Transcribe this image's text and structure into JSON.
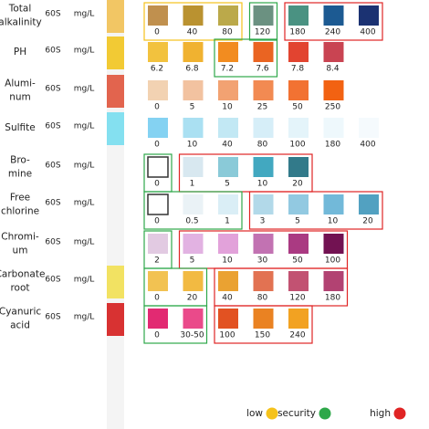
{
  "rows": [
    {
      "name": [
        "Total",
        "alkalinity"
      ],
      "time": "60S",
      "unit": "mg/L",
      "pad_color": "#f2c664",
      "swatches": [
        {
          "label": "0",
          "color": "#c0904e",
          "level": "low"
        },
        {
          "label": "40",
          "color": "#ba9230",
          "level": "low"
        },
        {
          "label": "80",
          "color": "#bba94a",
          "level": "low"
        },
        {
          "label": "120",
          "color": "#6b9181",
          "level": "security"
        },
        {
          "label": "180",
          "color": "#4a9282",
          "level": "high"
        },
        {
          "label": "240",
          "color": "#1c5a92",
          "level": "high"
        },
        {
          "label": "400",
          "color": "#1b3272",
          "level": "high"
        }
      ]
    },
    {
      "name": [
        "PH"
      ],
      "time": "60S",
      "unit": "mg/L",
      "pad_color": "#f2ca34",
      "swatches": [
        {
          "label": "6.2",
          "color": "#f2c23e",
          "level": null
        },
        {
          "label": "6.8",
          "color": "#f0b230",
          "level": null
        },
        {
          "label": "7.2",
          "color": "#f28c20",
          "level": "security"
        },
        {
          "label": "7.6",
          "color": "#ea6422",
          "level": "security"
        },
        {
          "label": "7.8",
          "color": "#e24430",
          "level": null
        },
        {
          "label": "8.4",
          "color": "#c94452",
          "level": null
        }
      ]
    },
    {
      "name": [
        "Alumi-",
        "num"
      ],
      "time": "60S",
      "unit": "mg/L",
      "pad_color": "#e2644e",
      "swatches": [
        {
          "label": "0",
          "color": "#f2d2b2",
          "level": null
        },
        {
          "label": "5",
          "color": "#f2c2a0",
          "level": null
        },
        {
          "label": "10",
          "color": "#f2a272",
          "level": null
        },
        {
          "label": "25",
          "color": "#f28a52",
          "level": null
        },
        {
          "label": "50",
          "color": "#f27232",
          "level": null
        },
        {
          "label": "250",
          "color": "#f26212",
          "level": null
        }
      ]
    },
    {
      "name": [
        "Sulfite"
      ],
      "time": "60S",
      "unit": "mg/L",
      "pad_color": "#84e0f0",
      "swatches": [
        {
          "label": "0",
          "color": "#84d2f2",
          "level": null
        },
        {
          "label": "10",
          "color": "#aae0f2",
          "level": null
        },
        {
          "label": "40",
          "color": "#c2e8f4",
          "level": null
        },
        {
          "label": "80",
          "color": "#d6eef8",
          "level": null
        },
        {
          "label": "100",
          "color": "#e4f4fa",
          "level": null
        },
        {
          "label": "180",
          "color": "#eef8fc",
          "level": null
        },
        {
          "label": "400",
          "color": "#f5fafd",
          "level": null
        }
      ]
    },
    {
      "name": [
        "Bro-",
        "mine"
      ],
      "time": "60S",
      "unit": "mg/L",
      "pad_color": "#f4f4f4",
      "swatches": [
        {
          "label": "0",
          "color": "#ffffff",
          "level": "security"
        },
        {
          "label": "1",
          "color": "#d8e8f0",
          "level": "high"
        },
        {
          "label": "5",
          "color": "#8acad8",
          "level": "high"
        },
        {
          "label": "10",
          "color": "#42a8c0",
          "level": "high"
        },
        {
          "label": "20",
          "color": "#327a8a",
          "level": "high"
        }
      ]
    },
    {
      "name": [
        "Free",
        "chlorine"
      ],
      "time": "60S",
      "unit": "mg/L",
      "pad_color": "#f4f4f4",
      "swatches": [
        {
          "label": "0",
          "color": "#ffffff",
          "level": "security"
        },
        {
          "label": "0.5",
          "color": "#eaf2f6",
          "level": "security"
        },
        {
          "label": "1",
          "color": "#daeef6",
          "level": "security"
        },
        {
          "label": "3",
          "color": "#b2d9e9",
          "level": "high"
        },
        {
          "label": "5",
          "color": "#92c9e1",
          "level": "high"
        },
        {
          "label": "10",
          "color": "#72b9d9",
          "level": "high"
        },
        {
          "label": "20",
          "color": "#52a1c1",
          "level": "high"
        }
      ]
    },
    {
      "name": [
        "Chromi-",
        "um"
      ],
      "time": "60S",
      "unit": "mg/L",
      "pad_color": "#f4f4f4",
      "swatches": [
        {
          "label": "2",
          "color": "#e2cae2",
          "level": "security"
        },
        {
          "label": "5",
          "color": "#e2b2e2",
          "level": "high"
        },
        {
          "label": "10",
          "color": "#e2a2da",
          "level": "high"
        },
        {
          "label": "30",
          "color": "#c272b2",
          "level": "high"
        },
        {
          "label": "50",
          "color": "#aa3a82",
          "level": "high"
        },
        {
          "label": "100",
          "color": "#721252",
          "level": "high"
        }
      ]
    },
    {
      "name": [
        "Carbonate",
        "root"
      ],
      "time": "60S",
      "unit": "mg/L",
      "pad_color": "#f2e262",
      "swatches": [
        {
          "label": "0",
          "color": "#f2c252",
          "level": "security"
        },
        {
          "label": "20",
          "color": "#f2ba42",
          "level": "security"
        },
        {
          "label": "40",
          "color": "#eaa232",
          "level": "high"
        },
        {
          "label": "80",
          "color": "#e27252",
          "level": "high"
        },
        {
          "label": "120",
          "color": "#c25272",
          "level": "high"
        },
        {
          "label": "180",
          "color": "#b24272",
          "level": "high"
        }
      ]
    },
    {
      "name": [
        "Cyanuric",
        "acid"
      ],
      "time": "60S",
      "unit": "mg/L",
      "pad_color": "#d83232",
      "swatches": [
        {
          "label": "0",
          "color": "#e22a72",
          "level": "security"
        },
        {
          "label": "30-50",
          "color": "#ea4a8a",
          "level": "security"
        },
        {
          "label": "100",
          "color": "#e25222",
          "level": "high"
        },
        {
          "label": "150",
          "color": "#ea8222",
          "level": "high"
        },
        {
          "label": "240",
          "color": "#f2a222",
          "level": "high"
        }
      ]
    }
  ],
  "legend": [
    {
      "label": "low",
      "color": "#f5c21b"
    },
    {
      "label": "security",
      "color": "#2ea84a"
    },
    {
      "label": "high",
      "color": "#e02424"
    }
  ]
}
